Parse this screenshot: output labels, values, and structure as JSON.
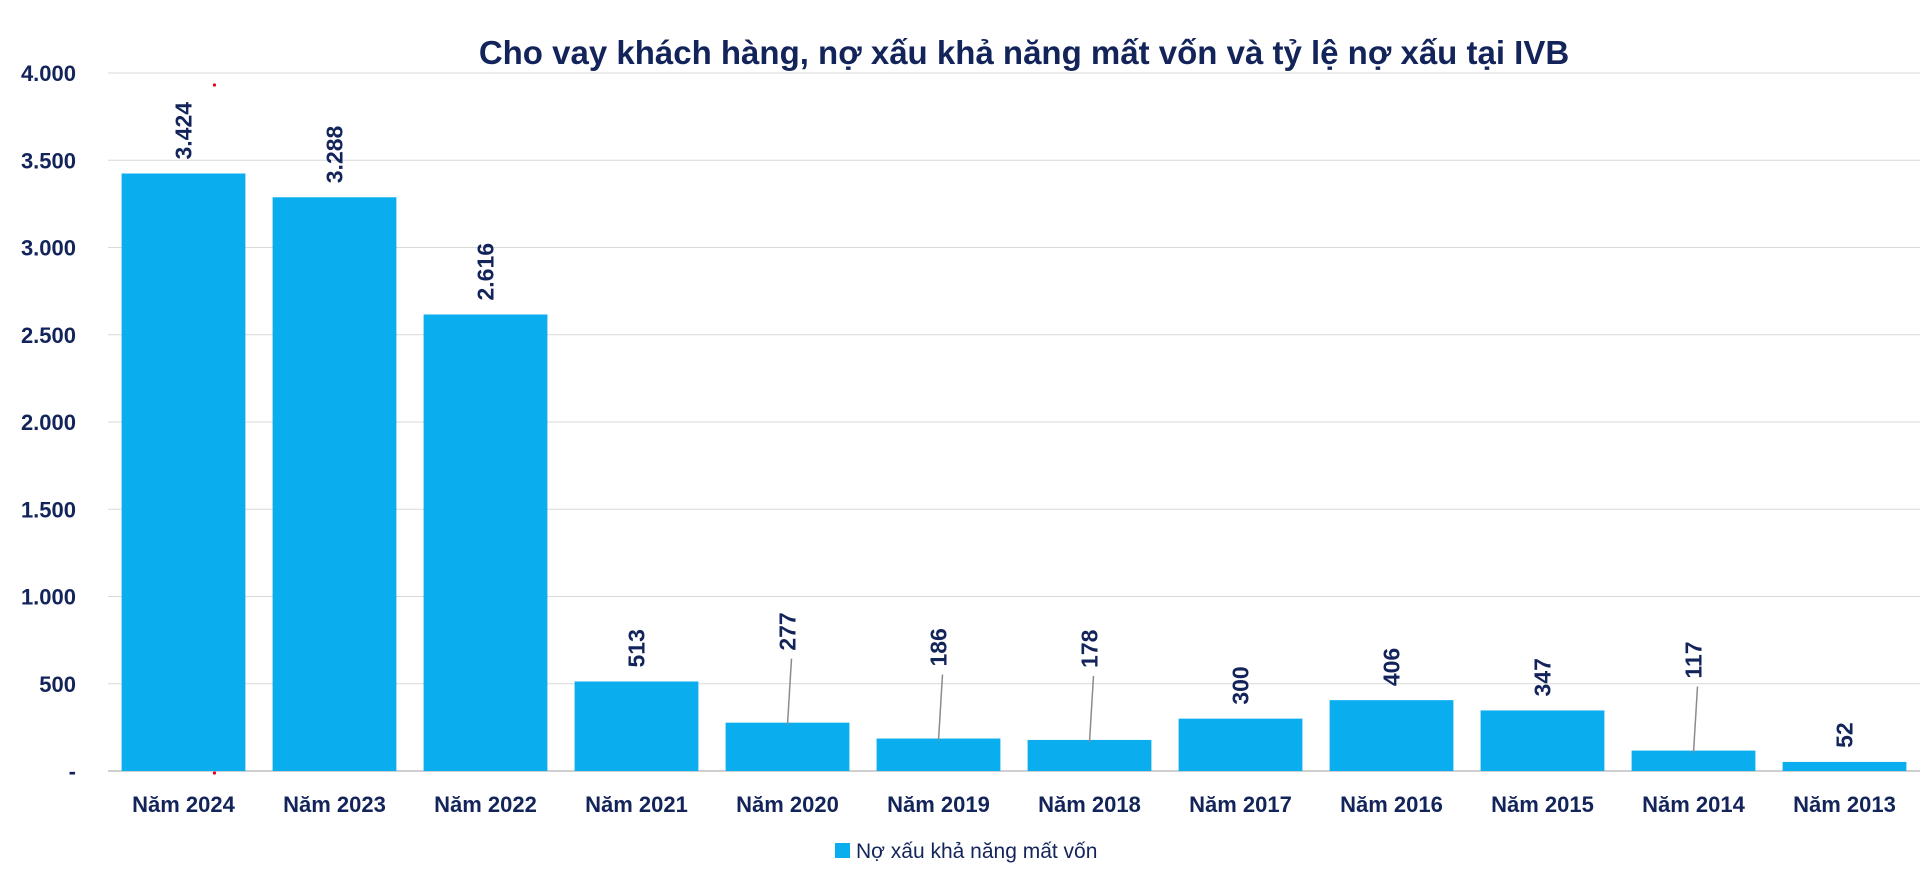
{
  "colors": {
    "bar": "#0AAEEF",
    "text": "#13245A",
    "grid": "#D9D9D9",
    "axis": "#BFBFBF",
    "leader": "#8C8C8C",
    "marker": "#E8001C",
    "background": "#FFFFFF"
  },
  "chart_data": {
    "type": "bar",
    "title": "Cho vay khách hàng, nợ xấu khả năng mất vốn và tỷ lệ nợ xấu tại IVB",
    "xlabel": "",
    "ylabel": "",
    "categories": [
      "Năm 2024",
      "Năm 2023",
      "Năm 2022",
      "Năm 2021",
      "Năm 2020",
      "Năm 2019",
      "Năm 2018",
      "Năm 2017",
      "Năm 2016",
      "Năm 2015",
      "Năm 2014",
      "Năm 2013"
    ],
    "series": [
      {
        "name": "Nợ xấu khả năng mất vốn",
        "values": [
          3424,
          3288,
          2616,
          513,
          277,
          186,
          178,
          300,
          406,
          347,
          117,
          52
        ],
        "data_labels": [
          "3.424",
          "3.288",
          "2.616",
          "513",
          "277",
          "186",
          "178",
          "300",
          "406",
          "347",
          "117",
          "52"
        ],
        "labels_with_leader_lines": [
          "Năm 2020",
          "Năm 2019",
          "Năm 2018",
          "Năm 2014"
        ]
      }
    ],
    "ylim": [
      0,
      4000
    ],
    "y_ticks": [
      0,
      500,
      1000,
      1500,
      2000,
      2500,
      3000,
      3500,
      4000
    ],
    "y_tick_labels": [
      "-",
      "500",
      "1.000",
      "1.500",
      "2.000",
      "2.500",
      "3.000",
      "3.500",
      "4.000"
    ],
    "grid": true,
    "legend_position": "bottom-center"
  }
}
